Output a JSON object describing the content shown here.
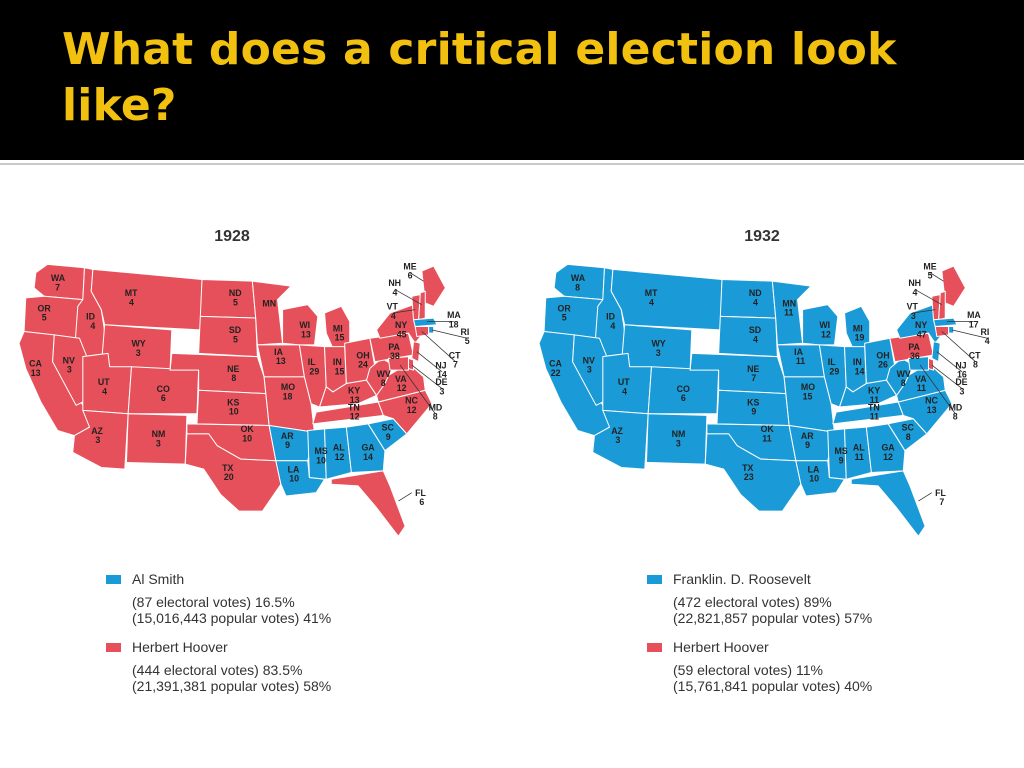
{
  "slide": {
    "title": "What does a critical election look like?"
  },
  "colors": {
    "democrat": "#1a9ad6",
    "republican": "#e6505a",
    "border": "#ffffff",
    "header_bg": "#000000",
    "title_text": "#f2c00f"
  },
  "maps": [
    {
      "year": "1928",
      "legend": [
        {
          "name": "Al Smith",
          "color": "#1a9ad6",
          "electoral": "(87 electoral votes) 16.5%",
          "popular": "(15,016,443 popular votes) 41%"
        },
        {
          "name": "Herbert Hoover",
          "color": "#e6505a",
          "electoral": "(444 electoral votes) 83.5%",
          "popular": "(21,391,381 popular votes) 58%"
        }
      ],
      "states": [
        {
          "abbr": "WA",
          "votes": "7",
          "winner": "R"
        },
        {
          "abbr": "OR",
          "votes": "5",
          "winner": "R"
        },
        {
          "abbr": "CA",
          "votes": "13",
          "winner": "R"
        },
        {
          "abbr": "ID",
          "votes": "4",
          "winner": "R"
        },
        {
          "abbr": "NV",
          "votes": "3",
          "winner": "R"
        },
        {
          "abbr": "MT",
          "votes": "4",
          "winner": "R"
        },
        {
          "abbr": "WY",
          "votes": "3",
          "winner": "R"
        },
        {
          "abbr": "UT",
          "votes": "4",
          "winner": "R"
        },
        {
          "abbr": "AZ",
          "votes": "3",
          "winner": "R"
        },
        {
          "abbr": "CO",
          "votes": "6",
          "winner": "R"
        },
        {
          "abbr": "NM",
          "votes": "3",
          "winner": "R"
        },
        {
          "abbr": "ND",
          "votes": "5",
          "winner": "R"
        },
        {
          "abbr": "SD",
          "votes": "5",
          "winner": "R"
        },
        {
          "abbr": "NE",
          "votes": "8",
          "winner": "R"
        },
        {
          "abbr": "KS",
          "votes": "10",
          "winner": "R"
        },
        {
          "abbr": "OK",
          "votes": "10",
          "winner": "R"
        },
        {
          "abbr": "TX",
          "votes": "20",
          "winner": "R"
        },
        {
          "abbr": "MN",
          "votes": "",
          "winner": "R"
        },
        {
          "abbr": "IA",
          "votes": "13",
          "winner": "R"
        },
        {
          "abbr": "MO",
          "votes": "18",
          "winner": "R"
        },
        {
          "abbr": "AR",
          "votes": "9",
          "winner": "D"
        },
        {
          "abbr": "LA",
          "votes": "10",
          "winner": "D"
        },
        {
          "abbr": "WI",
          "votes": "13",
          "winner": "R"
        },
        {
          "abbr": "IL",
          "votes": "29",
          "winner": "R"
        },
        {
          "abbr": "MI",
          "votes": "15",
          "winner": "R"
        },
        {
          "abbr": "IN",
          "votes": "15",
          "winner": "R"
        },
        {
          "abbr": "OH",
          "votes": "24",
          "winner": "R"
        },
        {
          "abbr": "KY",
          "votes": "13",
          "winner": "R"
        },
        {
          "abbr": "TN",
          "votes": "12",
          "winner": "R"
        },
        {
          "abbr": "MS",
          "votes": "10",
          "winner": "D"
        },
        {
          "abbr": "AL",
          "votes": "12",
          "winner": "D"
        },
        {
          "abbr": "GA",
          "votes": "14",
          "winner": "D"
        },
        {
          "abbr": "FL",
          "votes": "6",
          "winner": "R"
        },
        {
          "abbr": "SC",
          "votes": "9",
          "winner": "D"
        },
        {
          "abbr": "NC",
          "votes": "12",
          "winner": "R"
        },
        {
          "abbr": "VA",
          "votes": "12",
          "winner": "R"
        },
        {
          "abbr": "WV",
          "votes": "8",
          "winner": "R"
        },
        {
          "abbr": "PA",
          "votes": "38",
          "winner": "R"
        },
        {
          "abbr": "NY",
          "votes": "45",
          "winner": "R"
        },
        {
          "abbr": "ME",
          "votes": "6",
          "winner": "R"
        },
        {
          "abbr": "NH",
          "votes": "4",
          "winner": "R"
        },
        {
          "abbr": "VT",
          "votes": "4",
          "winner": "R"
        },
        {
          "abbr": "MA",
          "votes": "18",
          "winner": "D"
        },
        {
          "abbr": "RI",
          "votes": "5",
          "winner": "D"
        },
        {
          "abbr": "CT",
          "votes": "7",
          "winner": "R"
        },
        {
          "abbr": "NJ",
          "votes": "14",
          "winner": "R"
        },
        {
          "abbr": "DE",
          "votes": "3",
          "winner": "R"
        },
        {
          "abbr": "MD",
          "votes": "8",
          "winner": "R"
        }
      ]
    },
    {
      "year": "1932",
      "legend": [
        {
          "name": "Franklin. D. Roosevelt",
          "color": "#1a9ad6",
          "electoral": "(472 electoral votes) 89%",
          "popular": "(22,821,857 popular votes) 57%"
        },
        {
          "name": "Herbert Hoover",
          "color": "#e6505a",
          "electoral": "(59 electoral votes) 11%",
          "popular": "(15,761,841 popular votes) 40%"
        }
      ],
      "states": [
        {
          "abbr": "WA",
          "votes": "8",
          "winner": "D"
        },
        {
          "abbr": "OR",
          "votes": "5",
          "winner": "D"
        },
        {
          "abbr": "CA",
          "votes": "22",
          "winner": "D"
        },
        {
          "abbr": "ID",
          "votes": "4",
          "winner": "D"
        },
        {
          "abbr": "NV",
          "votes": "3",
          "winner": "D"
        },
        {
          "abbr": "MT",
          "votes": "4",
          "winner": "D"
        },
        {
          "abbr": "WY",
          "votes": "3",
          "winner": "D"
        },
        {
          "abbr": "UT",
          "votes": "4",
          "winner": "D"
        },
        {
          "abbr": "AZ",
          "votes": "3",
          "winner": "D"
        },
        {
          "abbr": "CO",
          "votes": "6",
          "winner": "D"
        },
        {
          "abbr": "NM",
          "votes": "3",
          "winner": "D"
        },
        {
          "abbr": "ND",
          "votes": "4",
          "winner": "D"
        },
        {
          "abbr": "SD",
          "votes": "4",
          "winner": "D"
        },
        {
          "abbr": "NE",
          "votes": "7",
          "winner": "D"
        },
        {
          "abbr": "KS",
          "votes": "9",
          "winner": "D"
        },
        {
          "abbr": "OK",
          "votes": "11",
          "winner": "D"
        },
        {
          "abbr": "TX",
          "votes": "23",
          "winner": "D"
        },
        {
          "abbr": "MN",
          "votes": "11",
          "winner": "D"
        },
        {
          "abbr": "IA",
          "votes": "11",
          "winner": "D"
        },
        {
          "abbr": "MO",
          "votes": "15",
          "winner": "D"
        },
        {
          "abbr": "AR",
          "votes": "9",
          "winner": "D"
        },
        {
          "abbr": "LA",
          "votes": "10",
          "winner": "D"
        },
        {
          "abbr": "WI",
          "votes": "12",
          "winner": "D"
        },
        {
          "abbr": "IL",
          "votes": "29",
          "winner": "D"
        },
        {
          "abbr": "MI",
          "votes": "19",
          "winner": "D"
        },
        {
          "abbr": "IN",
          "votes": "14",
          "winner": "D"
        },
        {
          "abbr": "OH",
          "votes": "26",
          "winner": "D"
        },
        {
          "abbr": "KY",
          "votes": "11",
          "winner": "D"
        },
        {
          "abbr": "TN",
          "votes": "11",
          "winner": "D"
        },
        {
          "abbr": "MS",
          "votes": "9",
          "winner": "D"
        },
        {
          "abbr": "AL",
          "votes": "11",
          "winner": "D"
        },
        {
          "abbr": "GA",
          "votes": "12",
          "winner": "D"
        },
        {
          "abbr": "FL",
          "votes": "7",
          "winner": "D"
        },
        {
          "abbr": "SC",
          "votes": "8",
          "winner": "D"
        },
        {
          "abbr": "NC",
          "votes": "13",
          "winner": "D"
        },
        {
          "abbr": "VA",
          "votes": "11",
          "winner": "D"
        },
        {
          "abbr": "WV",
          "votes": "8",
          "winner": "D"
        },
        {
          "abbr": "PA",
          "votes": "36",
          "winner": "R"
        },
        {
          "abbr": "NY",
          "votes": "47",
          "winner": "D"
        },
        {
          "abbr": "ME",
          "votes": "5",
          "winner": "R"
        },
        {
          "abbr": "NH",
          "votes": "4",
          "winner": "R"
        },
        {
          "abbr": "VT",
          "votes": "3",
          "winner": "R"
        },
        {
          "abbr": "MA",
          "votes": "17",
          "winner": "D"
        },
        {
          "abbr": "RI",
          "votes": "4",
          "winner": "D"
        },
        {
          "abbr": "CT",
          "votes": "8",
          "winner": "R"
        },
        {
          "abbr": "NJ",
          "votes": "16",
          "winner": "D"
        },
        {
          "abbr": "DE",
          "votes": "3",
          "winner": "R"
        },
        {
          "abbr": "MD",
          "votes": "8",
          "winner": "D"
        }
      ]
    }
  ]
}
